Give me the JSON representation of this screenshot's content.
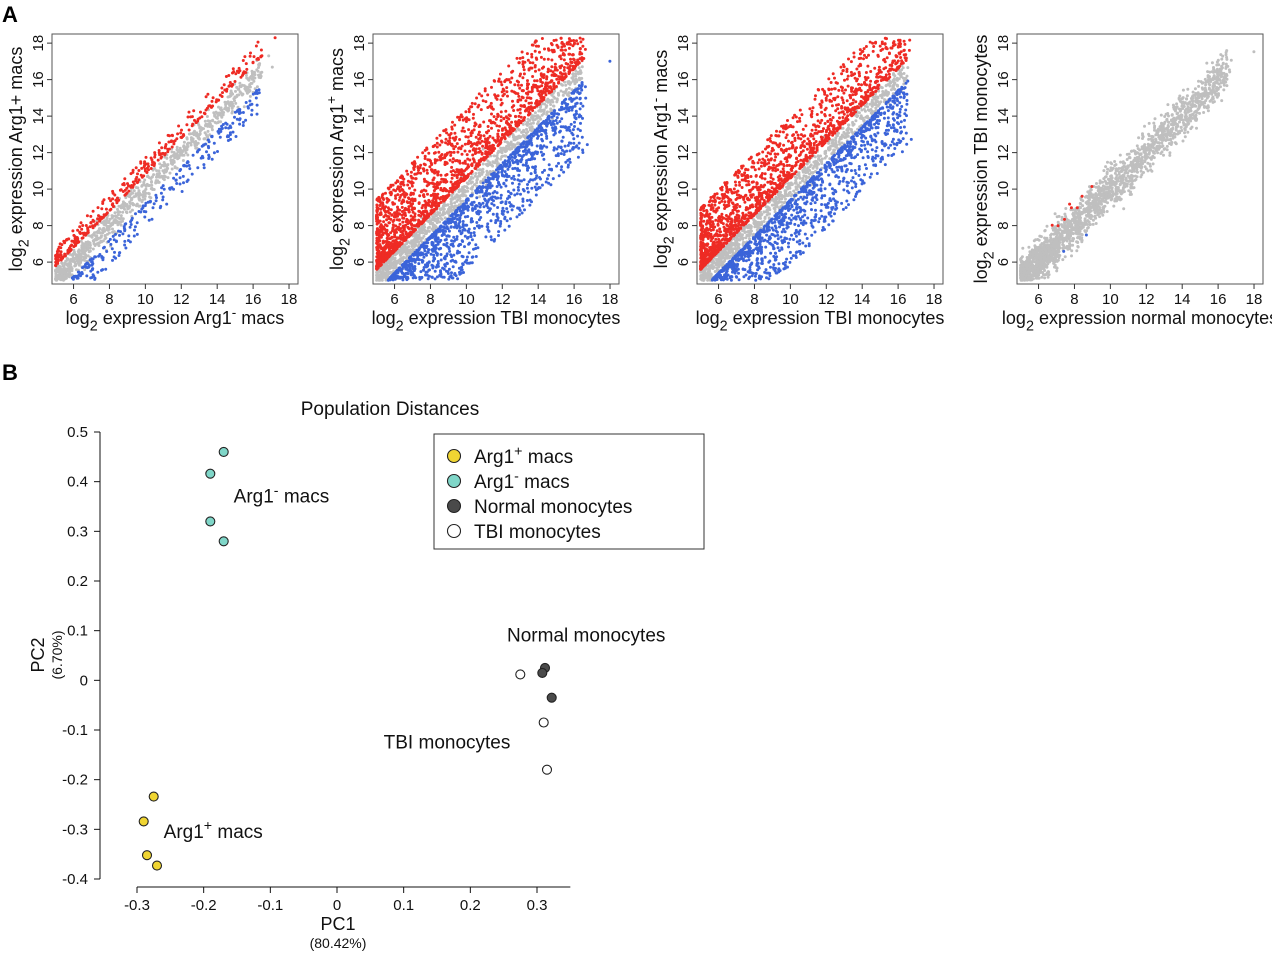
{
  "panel_labels": {
    "a": "A",
    "b": "B"
  },
  "colors": {
    "up": "#ee2b24",
    "down": "#3b64d9",
    "ns": "#bfbfbf",
    "arg1_plus": "#f0d532",
    "arg1_minus": "#7fd6c8",
    "normal": "#4a4a4a",
    "tbi": "#ffffff"
  },
  "chart_data": [
    {
      "type": "scatter",
      "panel": "A",
      "ylabel": {
        "prefix": "log",
        "sub": "2",
        "rest": " expression Arg1+ macs"
      },
      "xlabel": {
        "prefix": "log",
        "sub": "2",
        "rest": " expression Arg1",
        "sup": "-",
        "tail": " macs"
      },
      "xticks": [
        6,
        8,
        10,
        12,
        14,
        16,
        18
      ],
      "yticks": [
        6,
        8,
        10,
        12,
        14,
        16,
        18
      ],
      "xlim": [
        4.8,
        18.5
      ],
      "ylim": [
        4.8,
        18.5
      ],
      "series": [
        {
          "color_key": "ns",
          "n": 900,
          "spread": 0.35
        },
        {
          "color_key": "up",
          "n": 350,
          "offset": [
            0.8,
            1.8
          ]
        },
        {
          "color_key": "down",
          "n": 350,
          "offset": [
            -2.2,
            -0.8
          ]
        }
      ]
    },
    {
      "type": "scatter",
      "panel": "A",
      "ylabel": {
        "prefix": "log",
        "sub": "2",
        "rest": " expression Arg1",
        "sup": "+",
        "tail": " macs"
      },
      "xlabel": {
        "prefix": "log",
        "sub": "2",
        "rest": " expression TBI monocytes"
      },
      "xticks": [
        6,
        8,
        10,
        12,
        14,
        16,
        18
      ],
      "yticks": [
        6,
        8,
        10,
        12,
        14,
        16,
        18
      ],
      "xlim": [
        4.8,
        18.5
      ],
      "ylim": [
        4.8,
        18.5
      ],
      "series": [
        {
          "color_key": "ns",
          "n": 900,
          "spread": 0.35
        },
        {
          "color_key": "up",
          "n": 1800,
          "offset": [
            0.6,
            4.5
          ]
        },
        {
          "color_key": "down",
          "n": 1800,
          "offset": [
            -4.5,
            -0.6
          ]
        }
      ]
    },
    {
      "type": "scatter",
      "panel": "A",
      "ylabel": {
        "prefix": "log",
        "sub": "2",
        "rest": " expression Arg1",
        "sup": "-",
        "tail": " macs"
      },
      "xlabel": {
        "prefix": "log",
        "sub": "2",
        "rest": " expression TBI monocytes"
      },
      "xticks": [
        6,
        8,
        10,
        12,
        14,
        16,
        18
      ],
      "yticks": [
        6,
        8,
        10,
        12,
        14,
        16,
        18
      ],
      "xlim": [
        4.8,
        18.5
      ],
      "ylim": [
        4.8,
        18.5
      ],
      "series": [
        {
          "color_key": "ns",
          "n": 900,
          "spread": 0.35
        },
        {
          "color_key": "up",
          "n": 1600,
          "offset": [
            0.6,
            4.0
          ]
        },
        {
          "color_key": "down",
          "n": 1600,
          "offset": [
            -4.2,
            -0.6
          ]
        }
      ]
    },
    {
      "type": "scatter",
      "panel": "A",
      "ylabel": {
        "prefix": "log",
        "sub": "2",
        "rest": " expression TBI monocytes"
      },
      "xlabel": {
        "prefix": "log",
        "sub": "2",
        "rest": " expression normal monocytes"
      },
      "xticks": [
        6,
        8,
        10,
        12,
        14,
        16,
        18
      ],
      "yticks": [
        6,
        8,
        10,
        12,
        14,
        16,
        18
      ],
      "xlim": [
        4.8,
        18.5
      ],
      "ylim": [
        4.8,
        18.5
      ],
      "series": [
        {
          "color_key": "ns",
          "n": 2200,
          "spread": 0.55
        },
        {
          "color_key": "up",
          "n": 8,
          "offset": [
            0.8,
            1.6
          ],
          "xmax": 9
        },
        {
          "color_key": "down",
          "n": 3,
          "offset": [
            -1.2,
            -0.8
          ],
          "xmax": 9
        }
      ]
    },
    {
      "type": "scatter",
      "panel": "B",
      "title": "Population Distances",
      "xlabel": "PC1",
      "xlabel_sub": "(80.42%)",
      "ylabel": "PC2",
      "ylabel_sub": "(6.70%)",
      "xlim": [
        -0.35,
        0.38
      ],
      "ylim": [
        -0.41,
        0.5
      ],
      "xticks": [
        -0.3,
        -0.2,
        -0.1,
        0,
        0.1,
        0.2,
        0.3
      ],
      "xtick_labels": [
        "-0.3",
        "-0.2",
        "-0.1",
        "0",
        "0.1",
        "0.2",
        "0.3"
      ],
      "yticks": [
        -0.4,
        -0.3,
        -0.2,
        -0.1,
        0,
        0.1,
        0.2,
        0.3,
        0.4,
        0.5
      ],
      "ytick_labels": [
        "-0.4",
        "-0.3",
        "-0.2",
        "-0.1",
        "0",
        "0.1",
        "0.2",
        "0.3",
        "0.4",
        "0.5"
      ],
      "series": [
        {
          "name": "Arg1+ macs",
          "color_key": "arg1_plus",
          "points": [
            [
              -0.275,
              -0.234
            ],
            [
              -0.29,
              -0.284
            ],
            [
              -0.285,
              -0.352
            ],
            [
              -0.27,
              -0.373
            ]
          ]
        },
        {
          "name": "Arg1- macs",
          "color_key": "arg1_minus",
          "points": [
            [
              -0.17,
              0.46
            ],
            [
              -0.19,
              0.416
            ],
            [
              -0.19,
              0.32
            ],
            [
              -0.17,
              0.28
            ]
          ]
        },
        {
          "name": "Normal monocytes",
          "color_key": "normal",
          "points": [
            [
              0.312,
              0.025
            ],
            [
              0.308,
              0.015
            ],
            [
              0.322,
              -0.035
            ]
          ]
        },
        {
          "name": "TBI monocytes",
          "color_key": "tbi",
          "points": [
            [
              0.275,
              0.012
            ],
            [
              0.31,
              -0.085
            ],
            [
              0.315,
              -0.18
            ]
          ]
        }
      ],
      "legend": {
        "position": "top-center",
        "items": [
          {
            "base": "Arg1",
            "sup": "+",
            "tail": " macs",
            "color_key": "arg1_plus"
          },
          {
            "base": "Arg1",
            "sup": "-",
            "tail": "  macs",
            "color_key": "arg1_minus"
          },
          {
            "base": "Normal monocytes",
            "sup": "",
            "tail": "",
            "color_key": "normal"
          },
          {
            "base": "TBI monocytes",
            "sup": "",
            "tail": "",
            "color_key": "tbi"
          }
        ]
      },
      "annotations": [
        {
          "base": "Arg1",
          "sup": "-",
          "tail": " macs",
          "at": [
            -0.155,
            0.37
          ]
        },
        {
          "base": "Normal monocytes",
          "sup": "",
          "tail": "",
          "at": [
            0.255,
            0.09
          ]
        },
        {
          "base": "TBI monocytes",
          "sup": "",
          "tail": "",
          "at": [
            0.07,
            -0.125
          ]
        },
        {
          "base": "Arg1",
          "sup": "+",
          "tail": " macs",
          "at": [
            -0.26,
            -0.305
          ]
        }
      ]
    }
  ]
}
